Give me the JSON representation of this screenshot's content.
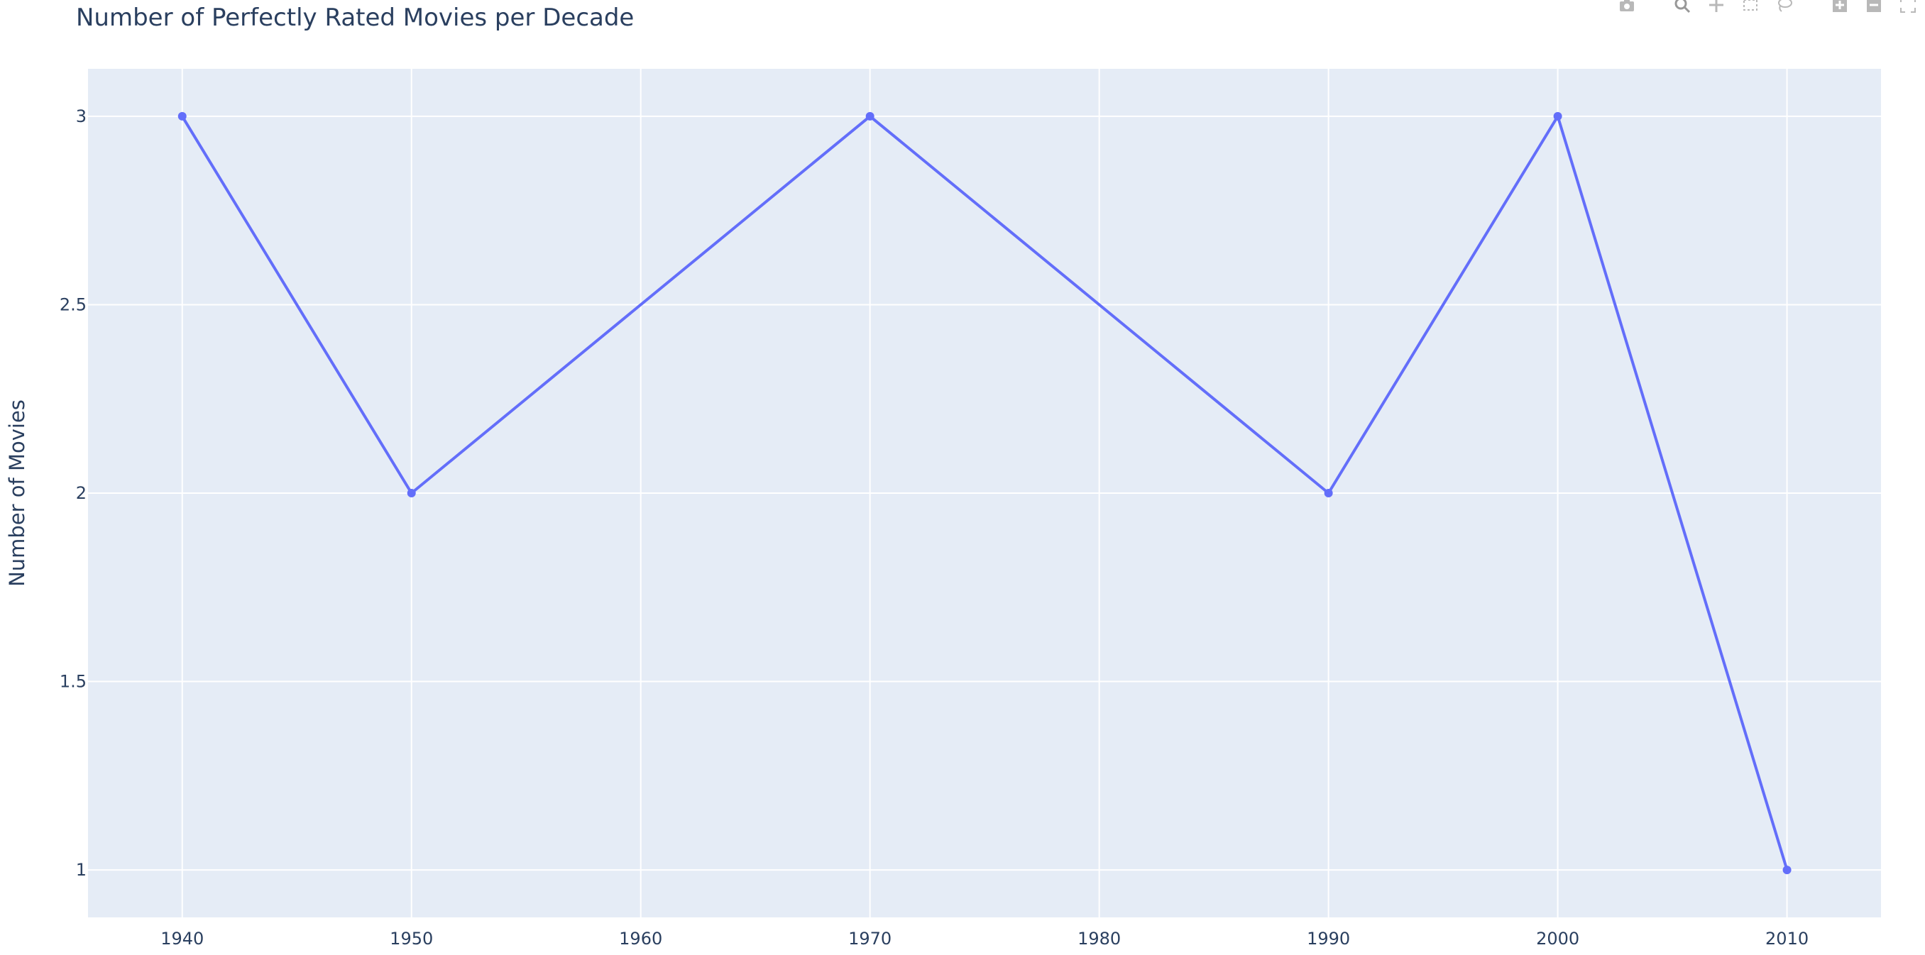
{
  "chart_data": {
    "type": "line",
    "title": "Number of Perfectly Rated Movies per Decade",
    "xlabel": "",
    "ylabel": "Number of Movies",
    "x": [
      1940,
      1950,
      1970,
      1990,
      2000,
      2010
    ],
    "series": [
      {
        "values": [
          3,
          2,
          3,
          2,
          3,
          1
        ]
      }
    ],
    "x_ticks": [
      1940,
      1950,
      1960,
      1970,
      1980,
      1990,
      2000,
      2010
    ],
    "x_tick_labels": [
      "1940",
      "1950",
      "1960",
      "1970",
      "1980",
      "1990",
      "2000",
      "2010"
    ],
    "y_ticks": [
      1,
      1.5,
      2,
      2.5,
      3
    ],
    "y_tick_labels": [
      "1",
      "1.5",
      "2",
      "2.5",
      "3"
    ],
    "xlim": [
      1935.89,
      2014.1
    ],
    "ylim": [
      0.874,
      3.126
    ],
    "grid": true,
    "markers": true,
    "colors": {
      "line": "#636efa",
      "plot_background": "#e5ecf6",
      "gridline": "#ffffff",
      "text": "#2a3f5f"
    }
  },
  "modebar": {
    "icons": [
      "camera-icon",
      "zoom-icon",
      "pan-icon",
      "box-select-icon",
      "lasso-icon",
      "zoom-in-icon",
      "zoom-out-icon",
      "autoscale-icon"
    ]
  }
}
